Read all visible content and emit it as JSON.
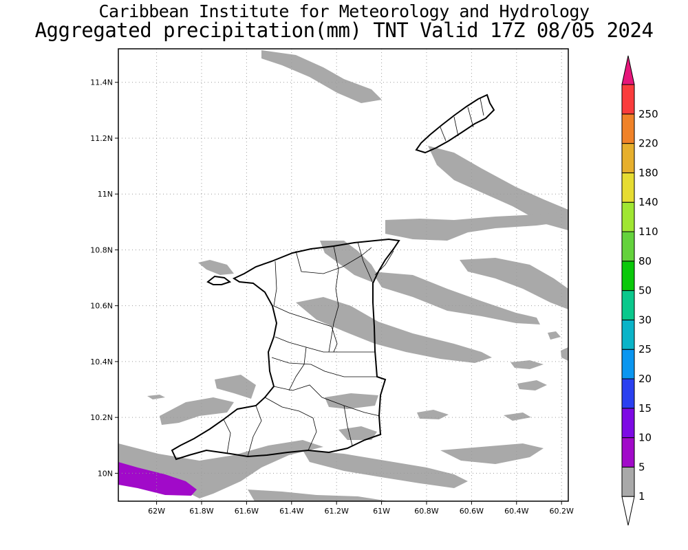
{
  "title_line1": "Caribbean Institute for Meteorology and Hydrology",
  "title_line2": "Aggregated precipitation(mm) TNT Valid 17Z 08/05 2024",
  "map": {
    "lon_ticks": [
      {
        "value": -62.0,
        "label": "62W"
      },
      {
        "value": -61.8,
        "label": "61.8W"
      },
      {
        "value": -61.6,
        "label": "61.6W"
      },
      {
        "value": -61.4,
        "label": "61.4W"
      },
      {
        "value": -61.2,
        "label": "61.2W"
      },
      {
        "value": -61.0,
        "label": "61W"
      },
      {
        "value": -60.8,
        "label": "60.8W"
      },
      {
        "value": -60.6,
        "label": "60.6W"
      },
      {
        "value": -60.4,
        "label": "60.4W"
      },
      {
        "value": -60.2,
        "label": "60.2W"
      }
    ],
    "lat_ticks": [
      {
        "value": 10.0,
        "label": "10N"
      },
      {
        "value": 10.2,
        "label": "10.2N"
      },
      {
        "value": 10.4,
        "label": "10.4N"
      },
      {
        "value": 10.6,
        "label": "10.6N"
      },
      {
        "value": 10.8,
        "label": "10.8N"
      },
      {
        "value": 11.0,
        "label": "11N"
      },
      {
        "value": 11.2,
        "label": "11.2N"
      },
      {
        "value": 11.4,
        "label": "11.4N"
      }
    ],
    "lon_range": [
      -62.17,
      -60.17
    ],
    "lat_range": [
      9.9,
      11.52
    ]
  },
  "colorbar": {
    "levels": [
      "1",
      "5",
      "10",
      "15",
      "20",
      "25",
      "30",
      "50",
      "80",
      "110",
      "140",
      "180",
      "220",
      "250"
    ],
    "colors": [
      "#a9a9a9",
      "#a10ac9",
      "#7d0ae4",
      "#2a40f0",
      "#0a96f0",
      "#0ab4c8",
      "#0ac88c",
      "#0ac80a",
      "#64d23c",
      "#a0e632",
      "#e6dc32",
      "#e6af2d",
      "#f08228",
      "#fa3c3c"
    ],
    "under_color": "#ffffff",
    "over_color": "#e6167a"
  }
}
